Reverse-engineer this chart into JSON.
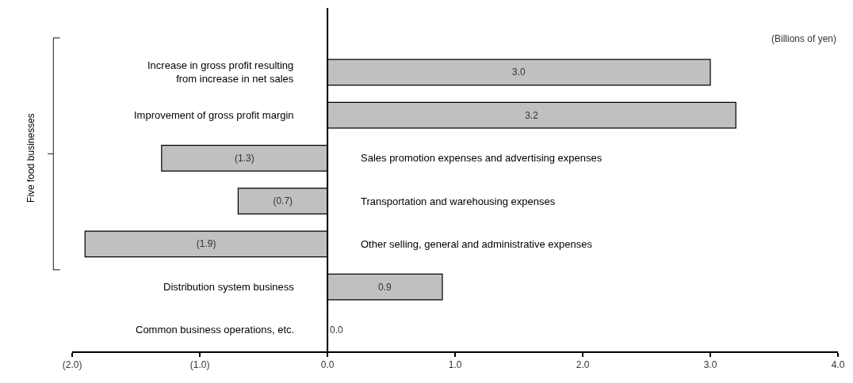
{
  "chart_data": {
    "type": "bar",
    "orientation": "horizontal",
    "categories": [
      "Increase in gross profit resulting\nfrom increase in net sales",
      "Improvement of gross profit margin",
      "Sales promotion expenses and advertising expenses",
      "Transportation and warehousing expenses",
      "Other selling, general and administrative expenses",
      "Distribution system business",
      "Common business operations, etc."
    ],
    "values": [
      3.0,
      3.2,
      -1.3,
      -0.7,
      -1.9,
      0.9,
      0.0
    ],
    "value_labels": [
      "3.0",
      "3.2",
      "(1.3)",
      "(0.7)",
      "(1.9)",
      "0.9",
      "0.0"
    ],
    "color": "#c0c0c0",
    "xlim": [
      -2,
      4
    ],
    "xticks": [
      {
        "value": -2,
        "label": "(2.0)"
      },
      {
        "value": -1,
        "label": "(1.0)"
      },
      {
        "value": 0,
        "label": "0.0"
      },
      {
        "value": 1,
        "label": "1.0"
      },
      {
        "value": 2,
        "label": "2.0"
      },
      {
        "value": 3,
        "label": "3.0"
      },
      {
        "value": 4,
        "label": "4.0"
      }
    ],
    "legend": false,
    "ref_lines": [
      {
        "axis": "x",
        "value": 0,
        "color": "#000000"
      }
    ],
    "annotations": [
      "(Billions of yen)",
      "Five food businesses"
    ]
  }
}
